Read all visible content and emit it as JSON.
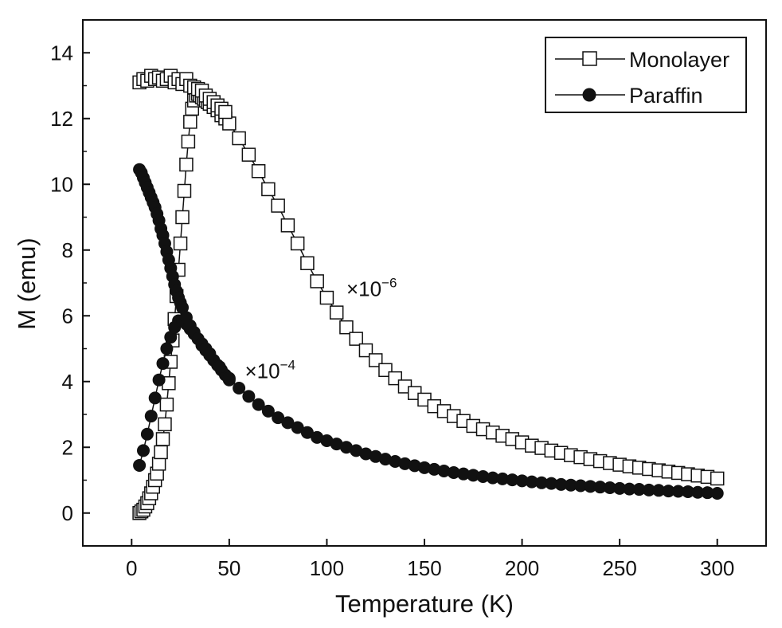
{
  "chart_data": {
    "type": "scatter",
    "xlabel": "Temperature (K)",
    "ylabel": "M (emu)",
    "xlim": [
      -25,
      325
    ],
    "ylim": [
      -1,
      15
    ],
    "xticks": [
      0,
      50,
      100,
      150,
      200,
      250,
      300
    ],
    "yticks": [
      0,
      2,
      4,
      6,
      8,
      10,
      12,
      14
    ],
    "grid": false,
    "legend_position": "top-right",
    "annotations": [
      {
        "base": "×10",
        "exponent": "−6",
        "x": 110,
        "y": 6.6
      },
      {
        "base": "×10",
        "exponent": "−4",
        "x": 58,
        "y": 4.1
      }
    ],
    "series": [
      {
        "name": "Monolayer",
        "marker": "open-square",
        "line": true,
        "color": "#111111",
        "x": [
          4,
          5,
          6,
          7,
          8,
          9,
          10,
          11,
          12,
          13,
          14,
          15,
          16,
          17,
          18,
          19,
          20,
          21,
          22,
          23,
          24,
          25,
          26,
          27,
          28,
          29,
          30,
          31,
          32,
          33,
          34,
          35,
          36,
          37,
          38,
          39,
          40,
          42,
          44,
          46,
          48,
          50,
          55,
          60,
          65,
          70,
          75,
          80,
          85,
          90,
          95,
          100,
          105,
          110,
          115,
          120,
          125,
          130,
          135,
          140,
          145,
          150,
          155,
          160,
          165,
          170,
          175,
          180,
          185,
          190,
          195,
          200,
          205,
          210,
          215,
          220,
          225,
          230,
          235,
          240,
          245,
          250,
          255,
          260,
          265,
          270,
          275,
          280,
          285,
          290,
          295,
          300
        ],
        "y": [
          0.0,
          0.05,
          0.1,
          0.2,
          0.3,
          0.45,
          0.6,
          0.8,
          1.0,
          1.2,
          1.5,
          1.85,
          2.25,
          2.7,
          3.3,
          3.95,
          4.6,
          5.25,
          5.9,
          6.6,
          7.4,
          8.2,
          9.0,
          9.8,
          10.6,
          11.3,
          11.9,
          12.3,
          12.55,
          12.7,
          12.75,
          12.7,
          12.65,
          12.6,
          12.55,
          12.5,
          12.45,
          12.35,
          12.25,
          12.1,
          12.0,
          11.85,
          11.4,
          10.9,
          10.4,
          9.85,
          9.35,
          8.75,
          8.2,
          7.6,
          7.05,
          6.55,
          6.1,
          5.65,
          5.3,
          4.95,
          4.65,
          4.35,
          4.1,
          3.85,
          3.65,
          3.45,
          3.25,
          3.1,
          2.95,
          2.8,
          2.65,
          2.55,
          2.45,
          2.35,
          2.25,
          2.15,
          2.05,
          1.98,
          1.9,
          1.83,
          1.76,
          1.7,
          1.64,
          1.58,
          1.52,
          1.47,
          1.42,
          1.38,
          1.34,
          1.3,
          1.26,
          1.22,
          1.18,
          1.14,
          1.1,
          1.05
        ]
      },
      {
        "name": "Monolayer",
        "marker": "open-square",
        "line": true,
        "color": "#111111",
        "x": [
          4,
          6,
          8,
          10,
          12,
          14,
          16,
          18,
          20,
          22,
          24,
          26,
          28,
          30,
          32,
          34,
          36,
          38,
          40,
          42,
          44,
          46,
          48
        ],
        "y": [
          13.1,
          13.2,
          13.15,
          13.3,
          13.2,
          13.25,
          13.15,
          13.2,
          13.3,
          13.1,
          13.2,
          13.05,
          13.2,
          13.0,
          12.95,
          12.9,
          12.85,
          12.7,
          12.6,
          12.5,
          12.4,
          12.3,
          12.2
        ]
      },
      {
        "name": "Paraffin",
        "marker": "filled-circle",
        "line": true,
        "color": "#111111",
        "x": [
          4,
          6,
          8,
          10,
          12,
          14,
          16,
          18,
          20,
          22,
          24,
          26,
          28,
          30,
          32,
          34,
          36,
          38,
          40,
          42,
          44,
          46,
          48,
          50
        ],
        "y": [
          1.45,
          1.9,
          2.4,
          2.95,
          3.5,
          4.05,
          4.55,
          5.0,
          5.35,
          5.65,
          5.85,
          5.85,
          5.75,
          5.6,
          5.45,
          5.3,
          5.1,
          4.95,
          4.8,
          4.65,
          4.5,
          4.35,
          4.2,
          4.05
        ]
      },
      {
        "name": "Paraffin",
        "marker": "filled-circle",
        "line": true,
        "color": "#111111",
        "x": [
          4,
          5,
          6,
          7,
          8,
          9,
          10,
          11,
          12,
          13,
          14,
          15,
          16,
          17,
          18,
          19,
          20,
          21,
          22,
          23,
          24,
          25,
          26,
          28,
          30,
          32,
          34,
          36,
          38,
          40,
          45,
          50,
          55,
          60,
          65,
          70,
          75,
          80,
          85,
          90,
          95,
          100,
          105,
          110,
          115,
          120,
          125,
          130,
          135,
          140,
          145,
          150,
          155,
          160,
          165,
          170,
          175,
          180,
          185,
          190,
          195,
          200,
          205,
          210,
          215,
          220,
          225,
          230,
          235,
          240,
          245,
          250,
          255,
          260,
          265,
          270,
          275,
          280,
          285,
          290,
          295,
          300
        ],
        "y": [
          10.45,
          10.35,
          10.2,
          10.05,
          9.9,
          9.75,
          9.6,
          9.45,
          9.3,
          9.1,
          8.9,
          8.65,
          8.45,
          8.2,
          7.95,
          7.7,
          7.45,
          7.2,
          6.95,
          6.75,
          6.55,
          6.4,
          6.25,
          5.95,
          5.7,
          5.5,
          5.3,
          5.15,
          5.0,
          4.85,
          4.45,
          4.1,
          3.8,
          3.55,
          3.3,
          3.1,
          2.9,
          2.75,
          2.6,
          2.45,
          2.3,
          2.2,
          2.1,
          2.0,
          1.9,
          1.8,
          1.72,
          1.64,
          1.57,
          1.5,
          1.44,
          1.38,
          1.33,
          1.28,
          1.23,
          1.19,
          1.15,
          1.11,
          1.07,
          1.04,
          1.01,
          0.98,
          0.95,
          0.92,
          0.9,
          0.87,
          0.85,
          0.83,
          0.81,
          0.79,
          0.77,
          0.75,
          0.73,
          0.72,
          0.7,
          0.69,
          0.67,
          0.66,
          0.65,
          0.63,
          0.62,
          0.6
        ]
      }
    ]
  }
}
